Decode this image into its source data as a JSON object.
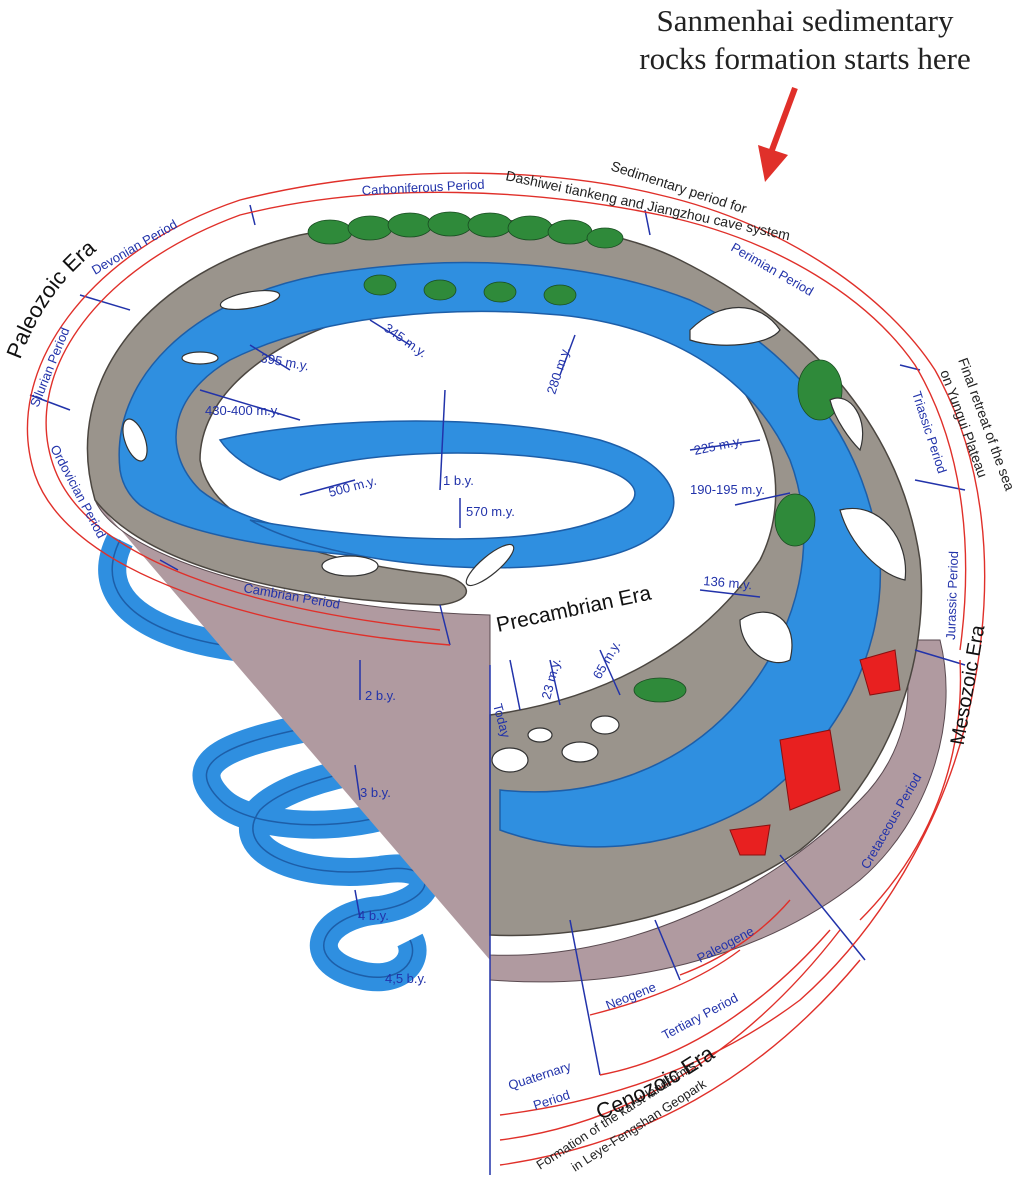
{
  "header": {
    "line1": "Sanmenhai sedimentary",
    "line2": "rocks formation starts here"
  },
  "sedimentary_note": {
    "line1": "Sedimentary period for",
    "line2": "Dashiwei tiankeng and Jiangzhou cave system"
  },
  "retreat_note": {
    "line1": "Final retreat of the sea",
    "line2": "on Yungui Plateau"
  },
  "karst_note": {
    "line1": "Formation of the karst landforms",
    "line2": "in Leye-Fengshan Geopark"
  },
  "eras": {
    "paleozoic": "Paleozoic Era",
    "mesozoic": "Mesozoic Era",
    "cenozoic": "Cenozoic Era",
    "precambrian": "Precambrian Era"
  },
  "periods": {
    "carboniferous": "Carboniferous Period",
    "devonian": "Devonian Period",
    "silurian": "Silurian Period",
    "ordovician": "Ordovician Period",
    "cambrian": "Cambrian Period",
    "permian": "Perimian Period",
    "triassic": "Triassic Period",
    "jurassic": "Jurassic Period",
    "cretaceous": "Cretaceous Period",
    "tertiary": "Tertiary Period",
    "paleogene": "Paleogene",
    "neogene": "Neogene",
    "quaternary_1": "Quaternary",
    "quaternary_2": "Period"
  },
  "ages": {
    "my345": "345 m.y.",
    "my395": "395 m.y.",
    "my430_400": "430-400 m.y.",
    "my280": "280 m.y.",
    "by1": "1 b.y.",
    "my500": "500 m.y.",
    "my570": "570 m.y.",
    "my225": "225 m.y.",
    "my190_195": "190-195 m.y.",
    "my136": "136 m.y.",
    "my65": "65 m.y.",
    "my23": "23 m.y.",
    "today": "Today",
    "by2": "2 b.y.",
    "by3": "3 b.y.",
    "by4": "4 b.y.",
    "by45": "4,5 b.y."
  },
  "colors": {
    "water": "#2f8fe0",
    "rock": "#9a948c",
    "underside": "#b09aa0",
    "arrow": "#e0302a",
    "label_blue": "#2233aa",
    "forest": "#2f8a3a",
    "lava": "#e82020"
  },
  "icons": [
    "arrow-down-icon",
    "tree-icon",
    "dinosaur-icon",
    "trilobite-icon",
    "fish-icon",
    "mammal-icon",
    "volcano-icon"
  ]
}
